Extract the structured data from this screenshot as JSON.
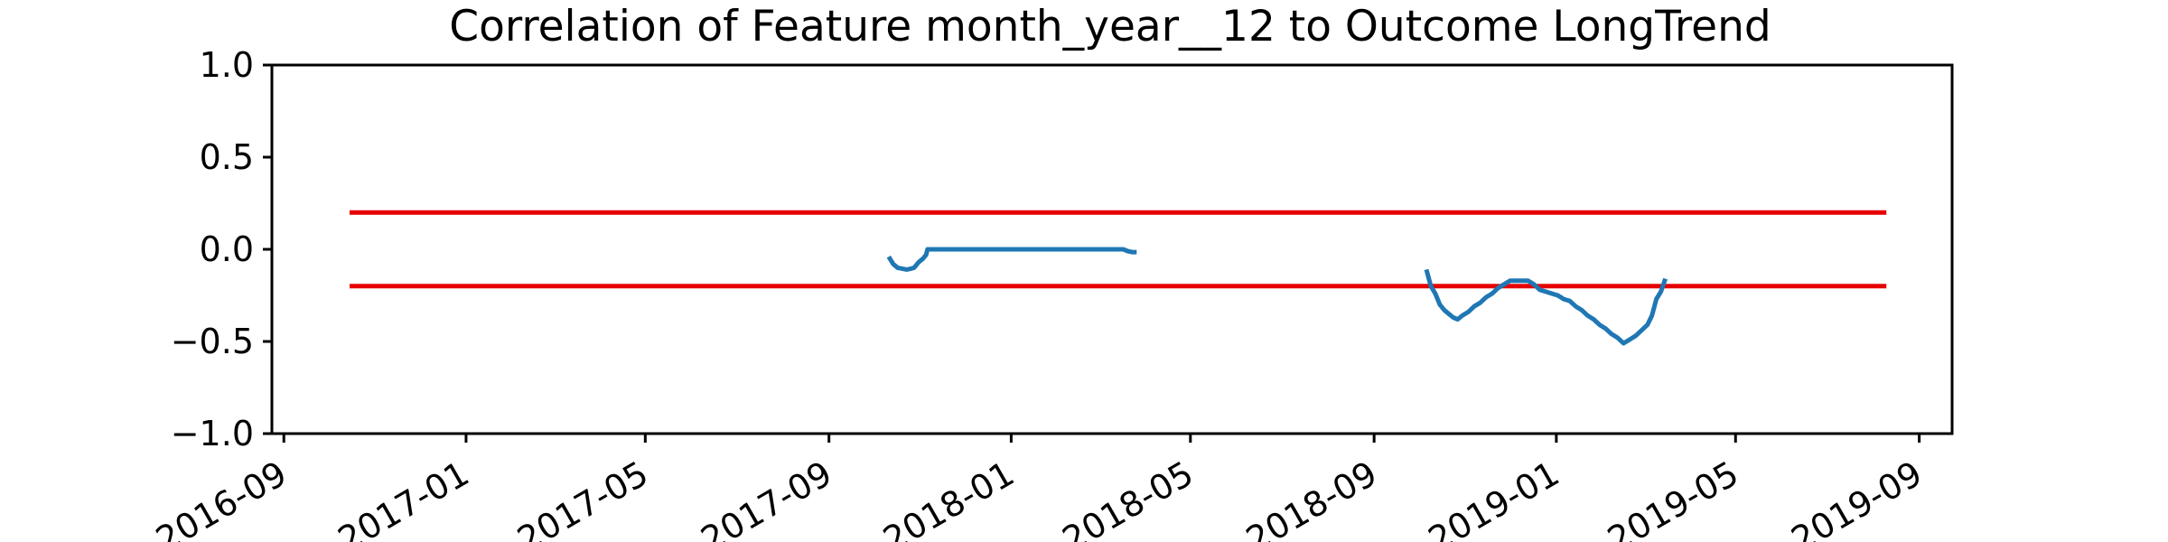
{
  "chart_data": {
    "type": "line",
    "title": "Correlation of Feature month_year__12 to Outcome LongTrend",
    "xlabel": "",
    "ylabel": "",
    "xlim": [
      "2016-08-24",
      "2019-09-23"
    ],
    "ylim": [
      -1.0,
      1.0
    ],
    "grid": false,
    "x_ticks": [
      "2016-09",
      "2017-01",
      "2017-05",
      "2017-09",
      "2018-01",
      "2018-05",
      "2018-09",
      "2019-01",
      "2019-05",
      "2019-09"
    ],
    "y_ticks": [
      "1.0",
      "0.5",
      "0.0",
      "−0.5",
      "−1.0"
    ],
    "colors": {
      "series": "#1f77b4",
      "threshold": "#e60000"
    },
    "thresholds": [
      {
        "value": 0.2,
        "x_start": "2016-10-15",
        "x_end": "2019-08-10"
      },
      {
        "value": -0.2,
        "x_start": "2016-10-15",
        "x_end": "2019-08-10"
      }
    ],
    "series": [
      {
        "x": [
          "2017-10-11",
          "2017-10-14",
          "2017-10-17",
          "2017-10-20",
          "2017-10-23",
          "2017-10-26",
          "2017-10-28",
          "2017-10-31",
          "2017-11-03",
          "2017-11-05",
          "2017-11-06",
          "2017-11-20",
          "2017-12-05",
          "2017-12-20",
          "2018-01-04",
          "2018-01-19",
          "2018-02-03",
          "2018-02-18",
          "2018-03-05",
          "2018-03-17",
          "2018-03-20",
          "2018-03-23",
          "2018-03-26"
        ],
        "values": [
          -0.04,
          -0.08,
          -0.1,
          -0.105,
          -0.11,
          -0.105,
          -0.1,
          -0.07,
          -0.05,
          -0.03,
          0.0,
          0.0,
          0.0,
          0.0,
          0.0,
          0.0,
          0.0,
          0.0,
          0.0,
          0.0,
          -0.01,
          -0.015,
          -0.015
        ]
      },
      {
        "x": [
          "2018-10-06",
          "2018-10-09",
          "2018-10-12",
          "2018-10-15",
          "2018-10-18",
          "2018-10-21",
          "2018-10-24",
          "2018-10-27",
          "2018-10-30",
          "2018-11-03",
          "2018-11-07",
          "2018-11-11",
          "2018-11-15",
          "2018-11-19",
          "2018-11-23",
          "2018-11-27",
          "2018-12-01",
          "2018-12-05",
          "2018-12-09",
          "2018-12-13",
          "2018-12-17",
          "2018-12-21",
          "2018-12-25",
          "2018-12-29",
          "2019-01-02",
          "2019-01-06",
          "2019-01-10",
          "2019-01-14",
          "2019-01-18",
          "2019-01-22",
          "2019-01-26",
          "2019-01-30",
          "2019-02-03",
          "2019-02-07",
          "2019-02-11",
          "2019-02-15",
          "2019-02-19",
          "2019-02-23",
          "2019-02-27",
          "2019-03-03",
          "2019-03-06",
          "2019-03-09",
          "2019-03-12",
          "2019-03-15"
        ],
        "values": [
          -0.11,
          -0.2,
          -0.24,
          -0.3,
          -0.33,
          -0.35,
          -0.37,
          -0.38,
          -0.36,
          -0.34,
          -0.31,
          -0.29,
          -0.26,
          -0.24,
          -0.21,
          -0.19,
          -0.17,
          -0.17,
          -0.17,
          -0.17,
          -0.19,
          -0.22,
          -0.23,
          -0.24,
          -0.25,
          -0.27,
          -0.28,
          -0.31,
          -0.33,
          -0.36,
          -0.38,
          -0.41,
          -0.43,
          -0.46,
          -0.48,
          -0.51,
          -0.49,
          -0.47,
          -0.44,
          -0.41,
          -0.36,
          -0.27,
          -0.23,
          -0.16
        ]
      }
    ]
  }
}
